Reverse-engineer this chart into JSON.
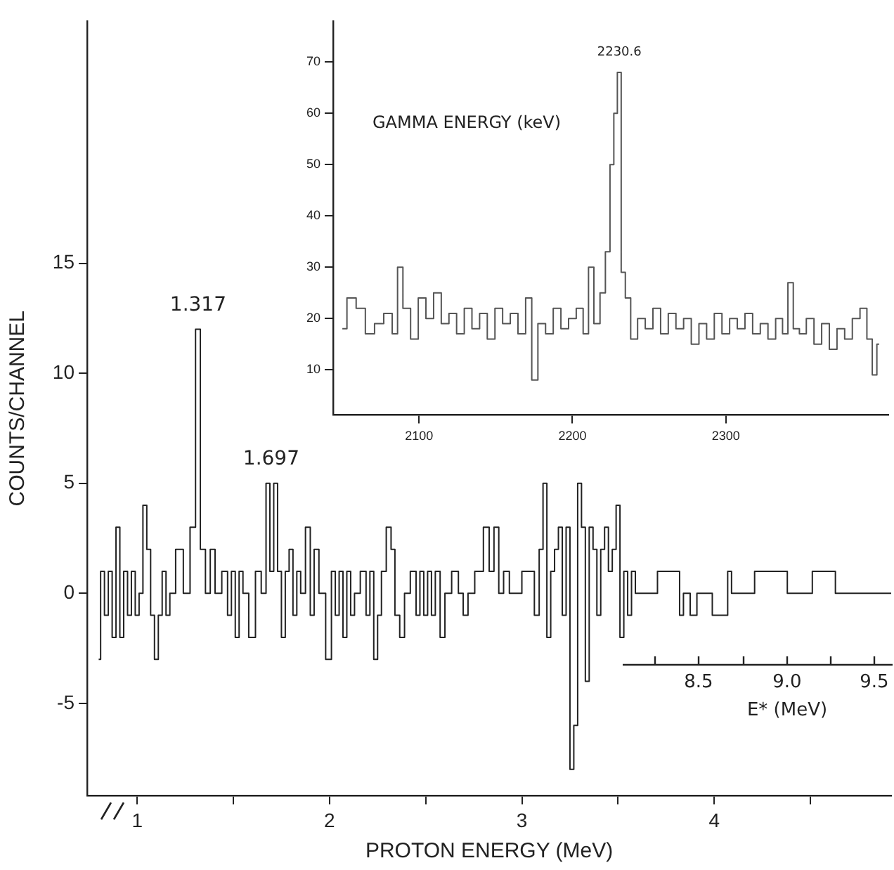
{
  "chart_data": [
    {
      "type": "step",
      "xlabel": "PROTON ENERGY (MeV)",
      "ylabel": "COUNTS/CHANNEL",
      "x": [
        0.8,
        0.82,
        0.84,
        0.86,
        0.88,
        0.9,
        0.92,
        0.94,
        0.96,
        0.98,
        1.0,
        1.02,
        1.04,
        1.06,
        1.08,
        1.1,
        1.12,
        1.14,
        1.16,
        1.18,
        1.22,
        1.26,
        1.29,
        1.317,
        1.34,
        1.37,
        1.39,
        1.42,
        1.46,
        1.48,
        1.5,
        1.52,
        1.54,
        1.56,
        1.6,
        1.63,
        1.66,
        1.68,
        1.7,
        1.72,
        1.74,
        1.76,
        1.78,
        1.8,
        1.82,
        1.84,
        1.86,
        1.89,
        1.91,
        1.93,
        1.96,
        2.0,
        2.02,
        2.04,
        2.06,
        2.08,
        2.1,
        2.12,
        2.14,
        2.18,
        2.2,
        2.22,
        2.24,
        2.26,
        2.28,
        2.31,
        2.33,
        2.35,
        2.38,
        2.4,
        2.44,
        2.46,
        2.48,
        2.5,
        2.52,
        2.54,
        2.56,
        2.59,
        2.61,
        2.66,
        2.68,
        2.71,
        2.73,
        2.78,
        2.82,
        2.84,
        2.87,
        2.89,
        2.92,
        2.95,
        3.05,
        3.08,
        3.1,
        3.12,
        3.14,
        3.16,
        3.18,
        3.2,
        3.22,
        3.24,
        3.26,
        3.28,
        3.3,
        3.32,
        3.34,
        3.36,
        3.38,
        3.4,
        3.42,
        3.44,
        3.46,
        3.48,
        3.5,
        3.52,
        3.54,
        3.56,
        3.58,
        3.6,
        3.81,
        3.83,
        3.85,
        3.9,
        3.92,
        4.06,
        4.08,
        4.1,
        4.32,
        4.36,
        4.4,
        4.62,
        4.64,
        4.92
      ],
      "series": [
        {
          "color": "#222222",
          "values": [
            -3,
            1,
            -1,
            1,
            -2,
            3,
            -2,
            1,
            -1,
            1,
            -1,
            0,
            4,
            2,
            -1,
            -3,
            -1,
            1,
            -1,
            0,
            2,
            0,
            3,
            12,
            2,
            0,
            2,
            0,
            1,
            -1,
            1,
            -2,
            1,
            0,
            -2,
            1,
            0,
            5,
            1,
            5,
            1,
            -2,
            1,
            2,
            -1,
            1,
            0,
            3,
            -1,
            2,
            0,
            -3,
            1,
            -1,
            1,
            -2,
            1,
            -1,
            0,
            1,
            -1,
            1,
            -3,
            -1,
            1,
            3,
            2,
            -1,
            -2,
            0,
            1,
            -1,
            1,
            -1,
            1,
            -1,
            1,
            -2,
            0,
            1,
            0,
            -1,
            0,
            1,
            3,
            1,
            3,
            0,
            1,
            0,
            1,
            -1,
            2,
            5,
            -2,
            1,
            2,
            3,
            -1,
            3,
            -8,
            -6,
            5,
            3,
            -4,
            3,
            2,
            -1,
            2,
            3,
            1,
            2,
            4,
            -2,
            1,
            -1,
            1,
            0,
            1,
            -1,
            0,
            -1,
            0,
            -1,
            1,
            0,
            1,
            1,
            0,
            1,
            0,
            0
          ]
        }
      ],
      "xlim": [
        0.74,
        4.92
      ],
      "ylim": [
        -9.2,
        26
      ],
      "xticks": [
        1,
        {
          "value": 1.5,
          "label": null
        },
        2,
        {
          "value": 2.5,
          "label": null
        },
        3,
        {
          "value": 3.5,
          "label": null
        },
        4,
        {
          "value": 4.5,
          "label": null
        }
      ],
      "yticks": [
        -5,
        0,
        5,
        10,
        15
      ],
      "grid": false,
      "legend": false,
      "annotations": [
        {
          "text": "1.317",
          "x": 1.317,
          "y": 12
        },
        {
          "text": "1.697",
          "x": 1.697,
          "y": 5
        }
      ]
    },
    {
      "type": "step",
      "xlabel": "GAMMA ENERGY (keV)",
      "x": [
        2050,
        2056,
        2062,
        2068,
        2074,
        2080,
        2085,
        2087,
        2092,
        2097,
        2102,
        2107,
        2112,
        2117,
        2122,
        2127,
        2132,
        2137,
        2142,
        2147,
        2152,
        2157,
        2162,
        2167,
        2172,
        2175,
        2180,
        2185,
        2190,
        2195,
        2200,
        2205,
        2209,
        2212,
        2216,
        2220,
        2223,
        2226,
        2228,
        2230.6,
        2233,
        2236,
        2240,
        2245,
        2250,
        2255,
        2260,
        2265,
        2270,
        2275,
        2280,
        2285,
        2290,
        2295,
        2300,
        2305,
        2310,
        2315,
        2320,
        2325,
        2330,
        2335,
        2339,
        2342,
        2346,
        2350,
        2355,
        2360,
        2365,
        2370,
        2375,
        2380,
        2385,
        2390,
        2394,
        2397,
        2400
      ],
      "series": [
        {
          "color": "#555555",
          "values": [
            18,
            24,
            22,
            17,
            19,
            21,
            17,
            30,
            22,
            16,
            24,
            20,
            25,
            19,
            21,
            17,
            22,
            18,
            21,
            16,
            22,
            19,
            21,
            17,
            24,
            8,
            19,
            17,
            22,
            18,
            20,
            22,
            17,
            30,
            19,
            25,
            33,
            50,
            60,
            68,
            29,
            24,
            16,
            20,
            18,
            22,
            17,
            21,
            18,
            20,
            15,
            19,
            16,
            21,
            17,
            20,
            18,
            21,
            17,
            19,
            16,
            20,
            17,
            27,
            18,
            17,
            20,
            15,
            19,
            14,
            18,
            16,
            20,
            22,
            16,
            9,
            15
          ]
        }
      ],
      "xlim": [
        2044,
        2406
      ],
      "ylim": [
        1.2,
        78
      ],
      "xticks": [
        2100,
        2200,
        2300
      ],
      "yticks": [
        10,
        20,
        30,
        40,
        50,
        60,
        70
      ],
      "grid": false,
      "legend": false,
      "annotations": [
        {
          "text": "2230.6",
          "x": 2230.6,
          "y": 68
        }
      ]
    },
    {
      "type": "other",
      "xlabel": "E* (MeV)",
      "annotations": [
        "8.5",
        "9.0",
        "9.5"
      ]
    }
  ]
}
